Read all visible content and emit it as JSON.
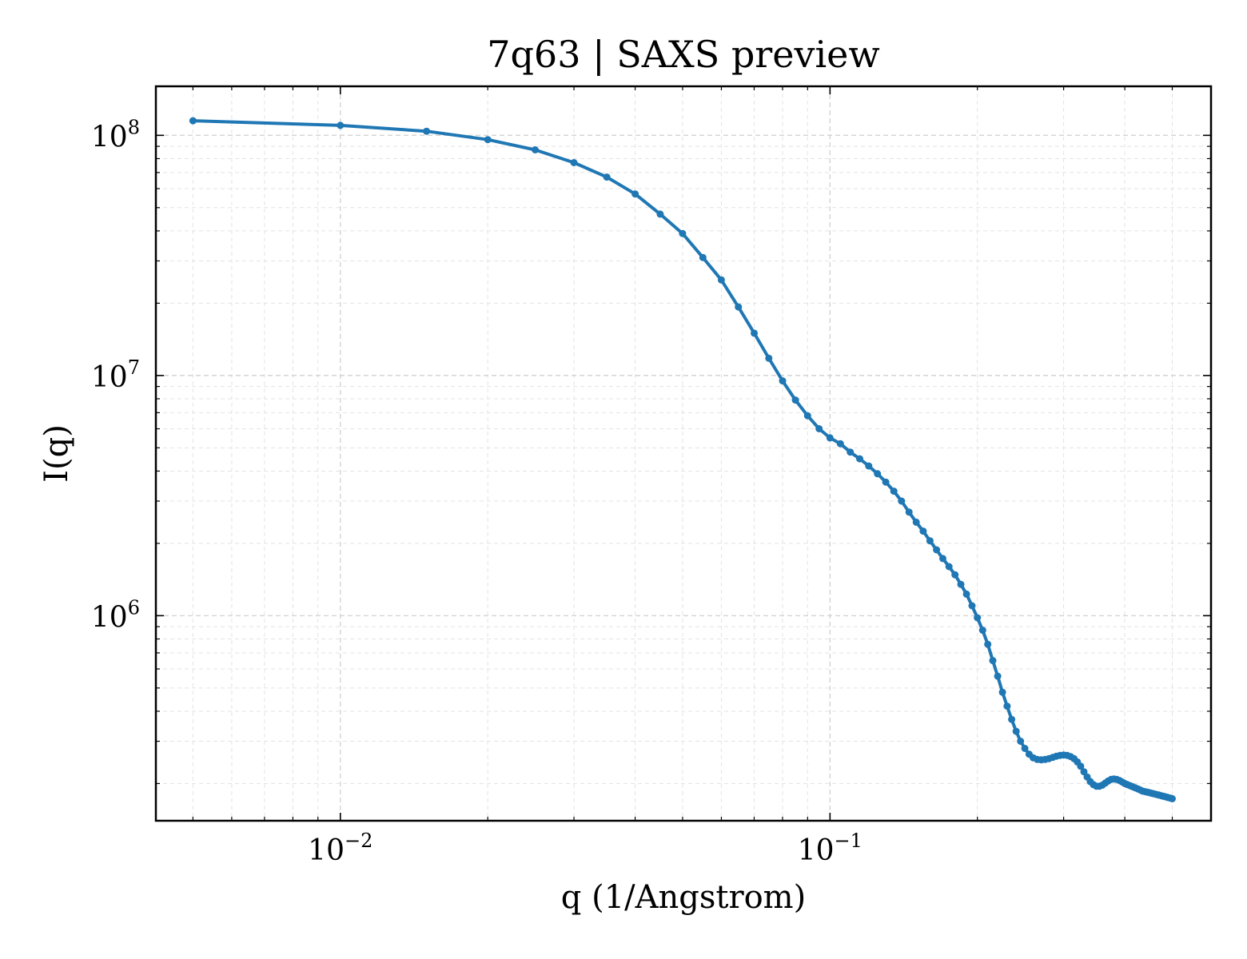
{
  "chart_data": {
    "type": "line",
    "title": "7q63 | SAXS preview",
    "xlabel": "q (1/Angstrom)",
    "ylabel": "I(q)",
    "xscale": "log",
    "yscale": "log",
    "xlim": [
      0.0042,
      0.6
    ],
    "ylim": [
      140000,
      160000000
    ],
    "grid": "both",
    "x_ticks": [
      {
        "value": 0.01,
        "base": "10",
        "exp": "−2"
      },
      {
        "value": 0.1,
        "base": "10",
        "exp": "−1"
      }
    ],
    "y_ticks": [
      {
        "value": 1000000,
        "base": "10",
        "exp": "6"
      },
      {
        "value": 10000000,
        "base": "10",
        "exp": "7"
      },
      {
        "value": 100000000,
        "base": "10",
        "exp": "8"
      }
    ],
    "series": [
      {
        "color": "#1f77b4",
        "x": [
          0.005,
          0.01,
          0.015,
          0.02,
          0.025,
          0.03,
          0.035,
          0.04,
          0.045,
          0.05,
          0.055,
          0.06,
          0.065,
          0.07,
          0.075,
          0.08,
          0.085,
          0.09,
          0.095,
          0.1,
          0.105,
          0.11,
          0.115,
          0.12,
          0.125,
          0.13,
          0.135,
          0.14,
          0.145,
          0.15,
          0.155,
          0.16,
          0.165,
          0.17,
          0.175,
          0.18,
          0.185,
          0.19,
          0.195,
          0.2,
          0.205,
          0.21,
          0.215,
          0.22,
          0.225,
          0.23,
          0.235,
          0.24,
          0.245,
          0.25,
          0.255,
          0.26,
          0.265,
          0.27,
          0.275,
          0.28,
          0.285,
          0.29,
          0.295,
          0.3,
          0.305,
          0.31,
          0.315,
          0.32,
          0.325,
          0.33,
          0.335,
          0.34,
          0.345,
          0.35,
          0.355,
          0.36,
          0.365,
          0.37,
          0.375,
          0.38,
          0.385,
          0.39,
          0.395,
          0.4,
          0.405,
          0.41,
          0.415,
          0.42,
          0.425,
          0.43,
          0.435,
          0.44,
          0.445,
          0.45,
          0.455,
          0.46,
          0.465,
          0.47,
          0.475,
          0.48,
          0.485,
          0.49,
          0.495,
          0.5
        ],
        "y": [
          115000000,
          110000000,
          104000000,
          96000000,
          87000000,
          77000000,
          67000000,
          57000000,
          47000000,
          39000000,
          31000000,
          25000000,
          19300000,
          15000000,
          11800000,
          9500000,
          7900000,
          6800000,
          6000000,
          5500000,
          5200000,
          4800000,
          4500000,
          4200000,
          3900000,
          3600000,
          3300000,
          3000000,
          2700000,
          2450000,
          2250000,
          2050000,
          1880000,
          1730000,
          1600000,
          1480000,
          1350000,
          1230000,
          1100000,
          980000,
          870000,
          760000,
          650000,
          560000,
          480000,
          420000,
          370000,
          330000,
          300000,
          280000,
          265000,
          256000,
          252000,
          251000,
          252000,
          254000,
          257000,
          260000,
          262000,
          263000,
          262000,
          259000,
          254000,
          246000,
          236000,
          224000,
          213000,
          204000,
          198000,
          195000,
          195000,
          197000,
          201000,
          205000,
          208000,
          209000,
          208000,
          206000,
          203000,
          200000,
          198000,
          196000,
          194000,
          192000,
          190000,
          188000,
          186000,
          185000,
          184000,
          183000,
          182000,
          181000,
          180000,
          179000,
          178000,
          177000,
          176000,
          175000,
          174000,
          173000
        ]
      }
    ]
  }
}
